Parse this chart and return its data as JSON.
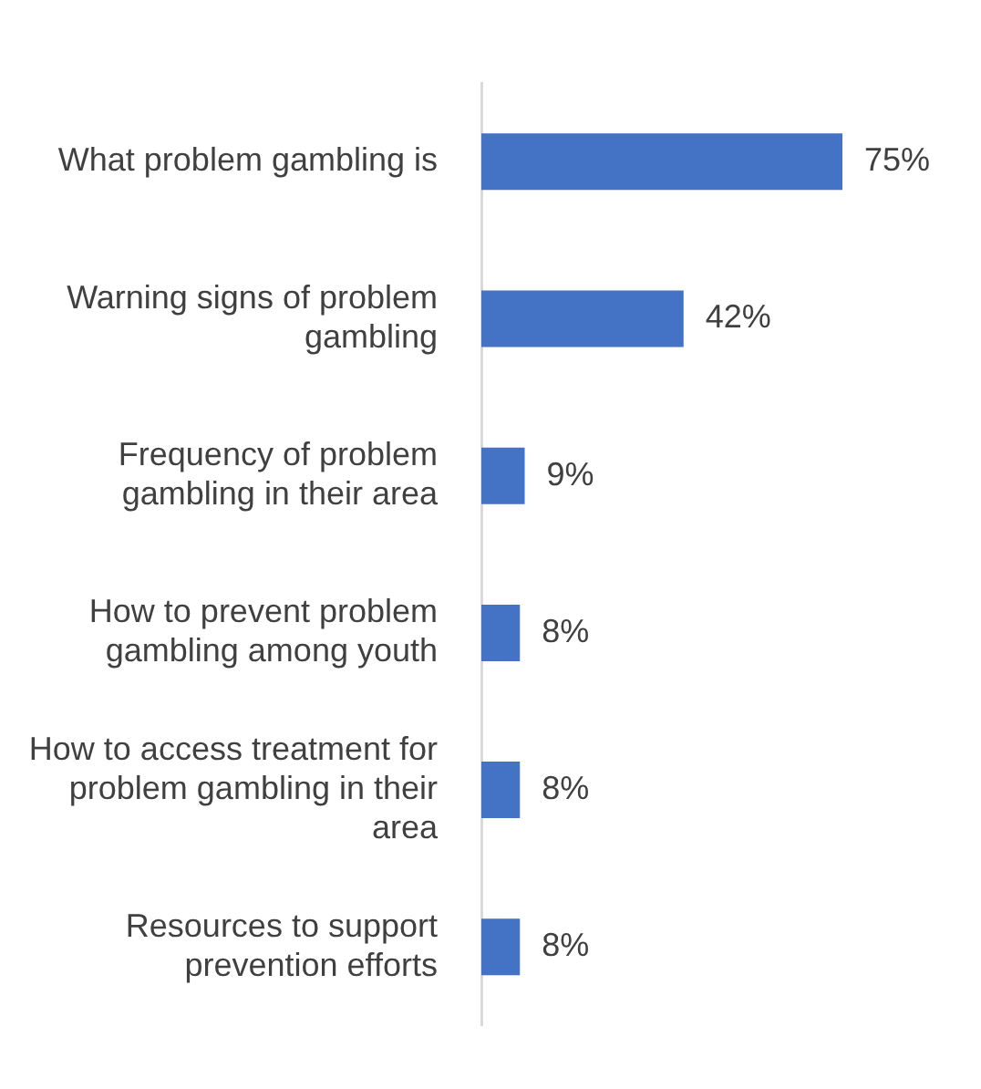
{
  "chart_data": {
    "type": "bar",
    "orientation": "horizontal",
    "categories": [
      "What problem gambling is",
      "Warning signs of problem gambling",
      "Frequency of problem gambling in their area",
      "How to prevent problem gambling among youth",
      "How to access treatment for problem gambling in their area",
      "Resources to support prevention efforts"
    ],
    "values": [
      75,
      42,
      9,
      8,
      8,
      8
    ],
    "value_labels": [
      "75%",
      "42%",
      "9%",
      "8%",
      "8%",
      "8%"
    ],
    "color": "#4472c4",
    "legend": false
  }
}
